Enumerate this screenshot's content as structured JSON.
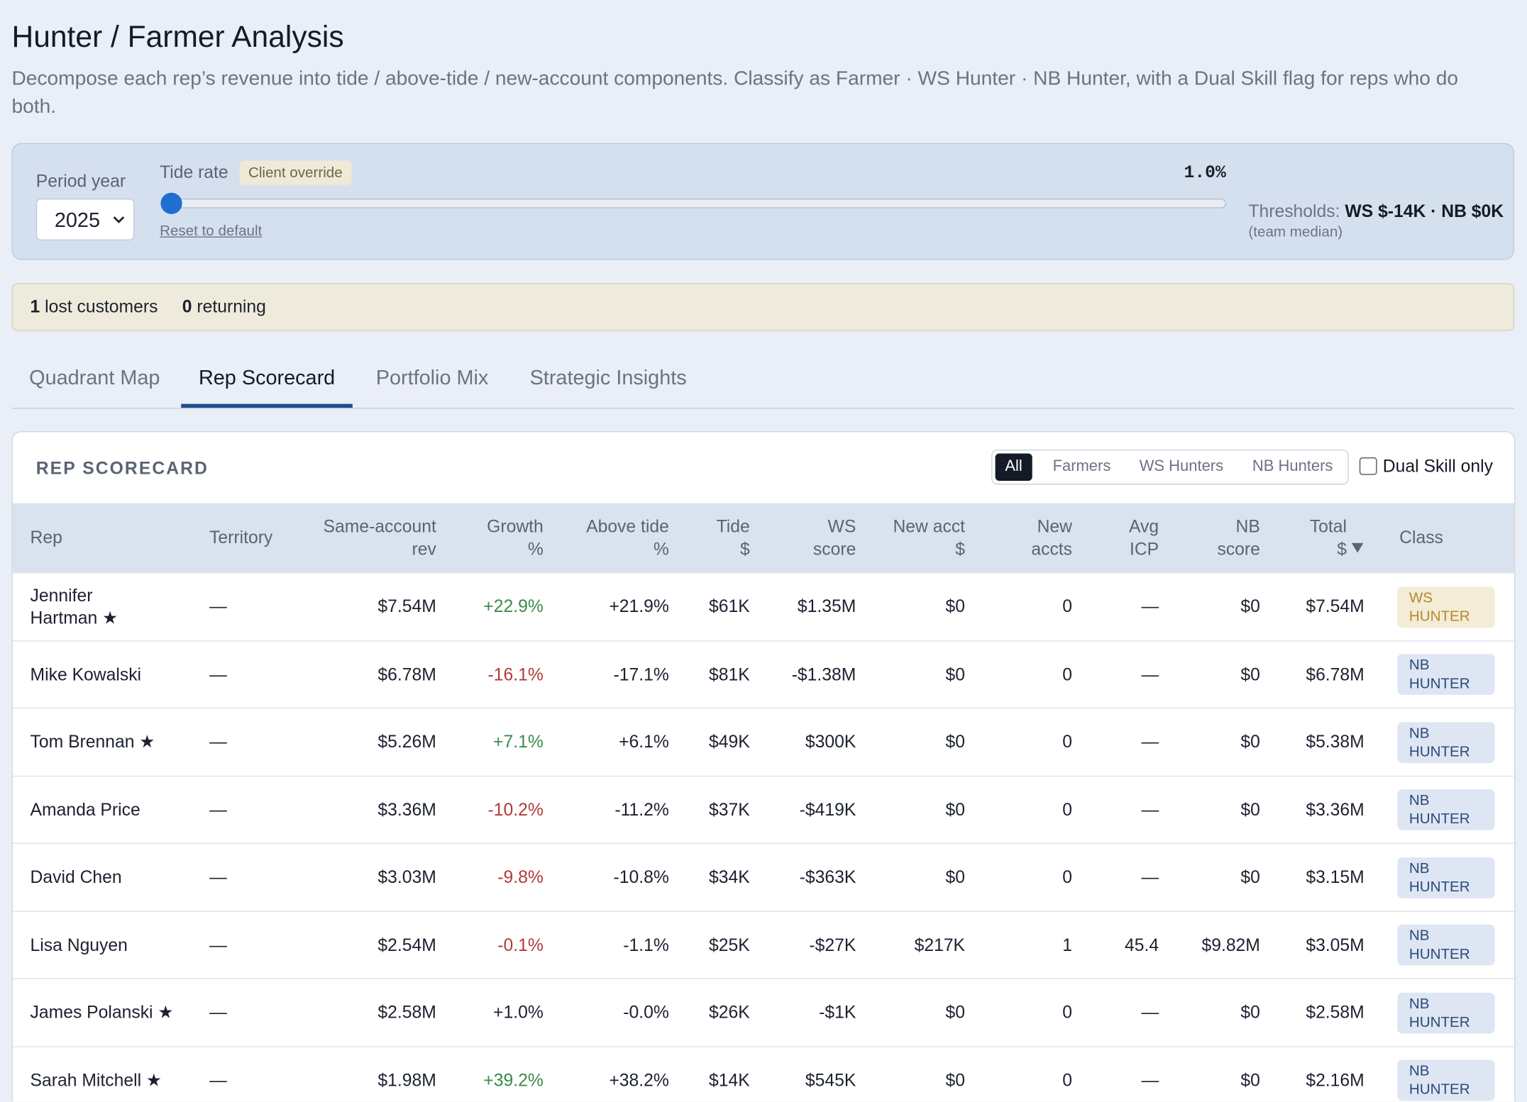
{
  "header": {
    "title": "Hunter / Farmer Analysis",
    "subtitle": "Decompose each rep’s revenue into tide / above-tide / new-account components. Classify as Farmer · WS Hunter · NB Hunter, with a Dual Skill flag for reps who do both."
  },
  "controls": {
    "period_label": "Period year",
    "period_value": "2025",
    "tide_label": "Tide rate",
    "override_badge": "Client override",
    "tide_value": "1.0%",
    "reset_link": "Reset to default",
    "thresholds_label": "Thresholds:",
    "thresholds_value": "WS $-14K · NB $0K",
    "thresholds_note": "(team median)"
  },
  "banner": {
    "lost_count": "1",
    "lost_label": "lost customers",
    "returning_count": "0",
    "returning_label": "returning"
  },
  "tabs": [
    "Quadrant Map",
    "Rep Scorecard",
    "Portfolio Mix",
    "Strategic Insights"
  ],
  "scorecard": {
    "title": "REP SCORECARD",
    "filters": [
      "All",
      "Farmers",
      "WS Hunters",
      "NB Hunters"
    ],
    "dual_skill": "Dual Skill only",
    "columns": [
      "Rep",
      "Territory",
      "Same-account\nrev",
      "Growth\n%",
      "Above tide\n%",
      "Tide\n$",
      "WS\nscore",
      "New acct\n$",
      "New\naccts",
      "Avg\nICP",
      "NB\nscore",
      "Total\n$",
      "Class"
    ],
    "rows": [
      [
        "Jennifer\nHartman ★",
        "—",
        "$7.54M",
        "+22.9%",
        "+21.9%",
        "$61K",
        "$1.35M",
        "$0",
        "0",
        "—",
        "$0",
        "$7.54M",
        "WS\nHUNTER"
      ],
      [
        "Mike Kowalski",
        "—",
        "$6.78M",
        "-16.1%",
        "-17.1%",
        "$81K",
        "-$1.38M",
        "$0",
        "0",
        "—",
        "$0",
        "$6.78M",
        "NB\nHUNTER"
      ],
      [
        "Tom Brennan ★",
        "—",
        "$5.26M",
        "+7.1%",
        "+6.1%",
        "$49K",
        "$300K",
        "$0",
        "0",
        "—",
        "$0",
        "$5.38M",
        "NB\nHUNTER"
      ],
      [
        "Amanda Price",
        "—",
        "$3.36M",
        "-10.2%",
        "-11.2%",
        "$37K",
        "-$419K",
        "$0",
        "0",
        "—",
        "$0",
        "$3.36M",
        "NB\nHUNTER"
      ],
      [
        "David Chen",
        "—",
        "$3.03M",
        "-9.8%",
        "-10.8%",
        "$34K",
        "-$363K",
        "$0",
        "0",
        "—",
        "$0",
        "$3.15M",
        "NB\nHUNTER"
      ],
      [
        "Lisa Nguyen",
        "—",
        "$2.54M",
        "-0.1%",
        "-1.1%",
        "$25K",
        "-$27K",
        "$217K",
        "1",
        "45.4",
        "$9.82M",
        "$3.05M",
        "NB\nHUNTER"
      ],
      [
        "James Polanski ★",
        "—",
        "$2.58M",
        "+1.0%",
        "-0.0%",
        "$26K",
        "-$1K",
        "$0",
        "0",
        "—",
        "$0",
        "$2.58M",
        "NB\nHUNTER"
      ],
      [
        "Sarah Mitchell ★",
        "—",
        "$1.98M",
        "+39.2%",
        "+38.2%",
        "$14K",
        "$545K",
        "$0",
        "0",
        "—",
        "$0",
        "$2.16M",
        "NB\nHUNTER"
      ]
    ],
    "growth_colors": [
      "#3a8a4a",
      "#b3393a",
      "#3a8a4a",
      "#b3393a",
      "#b3393a",
      "#b3393a",
      "#1c2130",
      "#3a8a4a"
    ]
  }
}
